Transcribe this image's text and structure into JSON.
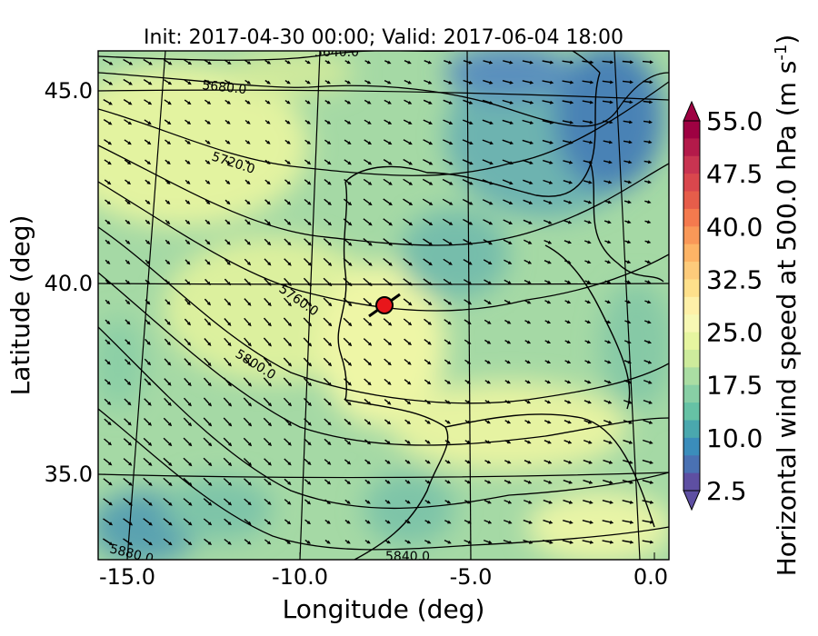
{
  "title": "Init: 2017-04-30 00:00; Valid: 2017-06-04 18:00",
  "xlabel": "Longitude (deg)",
  "ylabel": "Latitude (deg)",
  "colorbar": {
    "label": "Horizontal wind speed at 500.0 hPa (m s",
    "label_sup": "-1",
    "label_end": ")",
    "ticks": [
      "55.0",
      "47.5",
      "40.0",
      "32.5",
      "25.0",
      "17.5",
      "10.0",
      "2.5"
    ],
    "colors": [
      "#9e0142",
      "#b31a4a",
      "#c83451",
      "#d9474d",
      "#e65d4a",
      "#f47a4e",
      "#f99858",
      "#fdb466",
      "#fdcb7b",
      "#fee08b",
      "#fef0a8",
      "#f7f8b4",
      "#e6f5a0",
      "#cdeb9c",
      "#aadda3",
      "#88cfa5",
      "#66c2a5",
      "#4aa8ae",
      "#3b8dbb",
      "#4a71b3",
      "#5e4fa2"
    ]
  },
  "xticks": [
    "-15.0",
    "-10.0",
    "-5.0",
    "0.0"
  ],
  "yticks": [
    "45.0",
    "40.0",
    "35.0"
  ],
  "contour_labels": [
    "5640.0",
    "5680.0",
    "5720.0",
    "5760.0",
    "5800.0",
    "5880.0",
    "5840.0"
  ],
  "marker": {
    "lon": -7.5,
    "lat": 39.3,
    "color": "#e8161b"
  },
  "chart_data": {
    "type": "map",
    "title": "Init: 2017-04-30 00:00; Valid: 2017-06-04 18:00",
    "xlabel": "Longitude (deg)",
    "ylabel": "Latitude (deg)",
    "xlim": [
      -16.0,
      0.3
    ],
    "ylim": [
      32.5,
      46.0
    ],
    "colorbar_range": [
      2.5,
      55.0
    ],
    "contour_levels": [
      5640,
      5680,
      5720,
      5760,
      5800,
      5840,
      5880
    ],
    "colormap": "Spectral_r"
  }
}
